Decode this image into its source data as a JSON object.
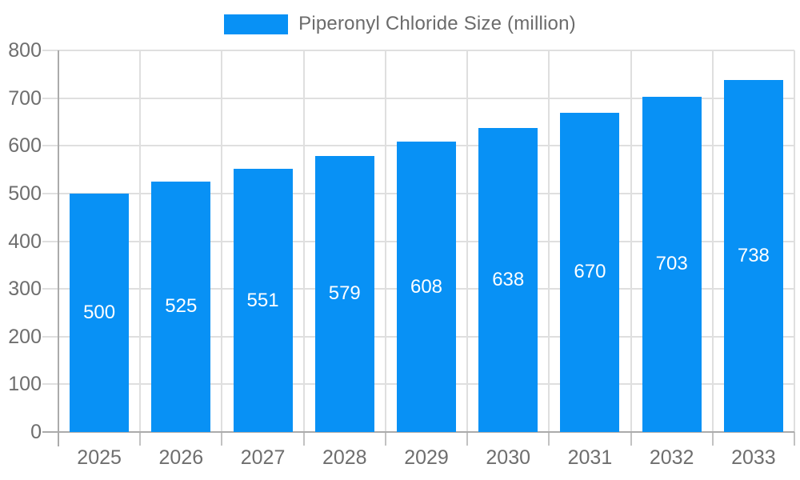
{
  "legend": {
    "label": "Piperonyl Chloride Size (million)"
  },
  "colors": {
    "bar": "#0891f5",
    "grid": "#dfdfdf",
    "axis": "#ababab",
    "x_tick": "#c2c2c2",
    "tick_label": "#6e6e6e",
    "value_label": "#ffffff",
    "legend_text": "#6b6b6b"
  },
  "chart_data": {
    "type": "bar",
    "title": "Piperonyl Chloride Size (million)",
    "categories": [
      "2025",
      "2026",
      "2027",
      "2028",
      "2029",
      "2030",
      "2031",
      "2032",
      "2033"
    ],
    "values": [
      500,
      525,
      551,
      579,
      608,
      638,
      670,
      703,
      738
    ],
    "xlabel": "",
    "ylabel": "",
    "ylim": [
      0,
      800
    ],
    "ytick_step": 100,
    "yticks": [
      0,
      100,
      200,
      300,
      400,
      500,
      600,
      700,
      800
    ],
    "grid": true,
    "legend_position": "top",
    "value_label_position": "inside-center"
  }
}
